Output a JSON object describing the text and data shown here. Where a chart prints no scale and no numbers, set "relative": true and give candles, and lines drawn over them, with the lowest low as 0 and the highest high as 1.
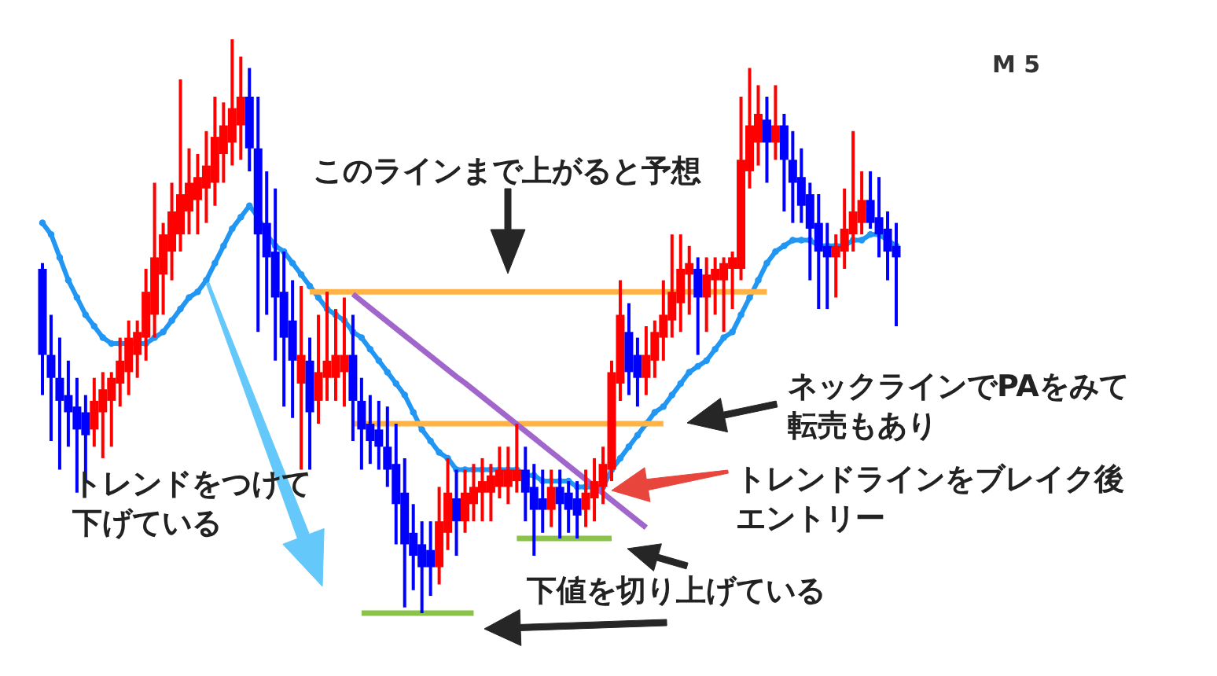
{
  "chart_data": {
    "type": "candlestick",
    "relative": true,
    "title": "M 5",
    "annotations": [
      "このラインまで上がると予想",
      "ネックラインでPAをみて転売もあり",
      "トレンドラインをブレイク後エントリー",
      "トレンドをつけて下げている",
      "下値を切り上げている"
    ],
    "categories": [
      null,
      null,
      null,
      null,
      null,
      null,
      null,
      null,
      null,
      null,
      null,
      null,
      null,
      null,
      null,
      null,
      null,
      null,
      null,
      null,
      null,
      null,
      null,
      null,
      null,
      null,
      null,
      null,
      null,
      null,
      null,
      null,
      null,
      null,
      null,
      null,
      null,
      null,
      null,
      null,
      null,
      null,
      null,
      null,
      null,
      null,
      null,
      null,
      null,
      null,
      null,
      null,
      null,
      null,
      null,
      null,
      null,
      null,
      null,
      null,
      null,
      null,
      null,
      null,
      null,
      null,
      null,
      null,
      null,
      null,
      null,
      null,
      null,
      null,
      null,
      null,
      null,
      null,
      null,
      null,
      null,
      null,
      null,
      null,
      null,
      null,
      null,
      null,
      null,
      null,
      null,
      null,
      null,
      null,
      null,
      null,
      null,
      null,
      null,
      null
    ],
    "ohlc": [
      [
        0.6,
        0.61,
        0.38,
        0.45
      ],
      [
        0.45,
        0.52,
        0.3,
        0.41
      ],
      [
        0.41,
        0.48,
        0.25,
        0.37
      ],
      [
        0.38,
        0.44,
        0.29,
        0.35
      ],
      [
        0.36,
        0.41,
        0.21,
        0.32
      ],
      [
        0.35,
        0.38,
        0.23,
        0.31
      ],
      [
        0.32,
        0.41,
        0.29,
        0.37
      ],
      [
        0.35,
        0.42,
        0.27,
        0.39
      ],
      [
        0.37,
        0.42,
        0.29,
        0.41
      ],
      [
        0.4,
        0.48,
        0.36,
        0.44
      ],
      [
        0.42,
        0.51,
        0.38,
        0.48
      ],
      [
        0.45,
        0.51,
        0.41,
        0.49
      ],
      [
        0.48,
        0.6,
        0.44,
        0.56
      ],
      [
        0.52,
        0.75,
        0.48,
        0.62
      ],
      [
        0.59,
        0.68,
        0.52,
        0.66
      ],
      [
        0.63,
        0.75,
        0.58,
        0.7
      ],
      [
        0.66,
        0.93,
        0.63,
        0.73
      ],
      [
        0.7,
        0.81,
        0.66,
        0.75
      ],
      [
        0.72,
        0.8,
        0.66,
        0.76
      ],
      [
        0.74,
        0.84,
        0.68,
        0.78
      ],
      [
        0.75,
        0.9,
        0.71,
        0.83
      ],
      [
        0.8,
        0.89,
        0.75,
        0.85
      ],
      [
        0.82,
        1.0,
        0.78,
        0.88
      ],
      [
        0.85,
        0.97,
        0.79,
        0.9
      ],
      [
        0.9,
        0.95,
        0.77,
        0.81
      ],
      [
        0.81,
        0.9,
        0.49,
        0.66
      ],
      [
        0.68,
        0.77,
        0.52,
        0.62
      ],
      [
        0.63,
        0.74,
        0.44,
        0.55
      ],
      [
        0.56,
        0.63,
        0.36,
        0.48
      ],
      [
        0.51,
        0.58,
        0.34,
        0.44
      ],
      [
        0.4,
        0.57,
        0.25,
        0.45
      ],
      [
        0.44,
        0.48,
        0.25,
        0.35
      ],
      [
        0.37,
        0.52,
        0.33,
        0.42
      ],
      [
        0.41,
        0.56,
        0.37,
        0.44
      ],
      [
        0.41,
        0.53,
        0.37,
        0.45
      ],
      [
        0.42,
        0.55,
        0.36,
        0.45
      ],
      [
        0.45,
        0.52,
        0.3,
        0.37
      ],
      [
        0.37,
        0.41,
        0.25,
        0.32
      ],
      [
        0.33,
        0.38,
        0.26,
        0.3
      ],
      [
        0.32,
        0.37,
        0.25,
        0.29
      ],
      [
        0.29,
        0.36,
        0.22,
        0.25
      ],
      [
        0.26,
        0.33,
        0.12,
        0.19
      ],
      [
        0.21,
        0.27,
        0.01,
        0.12
      ],
      [
        0.14,
        0.19,
        0.04,
        0.1
      ],
      [
        0.12,
        0.16,
        0.0,
        0.08
      ],
      [
        0.11,
        0.16,
        0.03,
        0.08
      ],
      [
        0.08,
        0.22,
        0.05,
        0.16
      ],
      [
        0.14,
        0.27,
        0.11,
        0.21
      ],
      [
        0.2,
        0.25,
        0.1,
        0.16
      ],
      [
        0.16,
        0.25,
        0.14,
        0.21
      ],
      [
        0.19,
        0.26,
        0.16,
        0.22
      ],
      [
        0.21,
        0.27,
        0.16,
        0.23
      ],
      [
        0.21,
        0.26,
        0.16,
        0.24
      ],
      [
        0.22,
        0.29,
        0.2,
        0.25
      ],
      [
        0.22,
        0.29,
        0.19,
        0.25
      ],
      [
        0.23,
        0.33,
        0.21,
        0.25
      ],
      [
        0.25,
        0.29,
        0.16,
        0.21
      ],
      [
        0.22,
        0.26,
        0.1,
        0.18
      ],
      [
        0.2,
        0.25,
        0.14,
        0.18
      ],
      [
        0.18,
        0.25,
        0.15,
        0.22
      ],
      [
        0.22,
        0.25,
        0.13,
        0.19
      ],
      [
        0.21,
        0.23,
        0.14,
        0.18
      ],
      [
        0.2,
        0.23,
        0.13,
        0.17
      ],
      [
        0.18,
        0.25,
        0.15,
        0.21
      ],
      [
        0.2,
        0.27,
        0.16,
        0.23
      ],
      [
        0.22,
        0.29,
        0.19,
        0.26
      ],
      [
        0.25,
        0.44,
        0.23,
        0.42
      ],
      [
        0.4,
        0.58,
        0.37,
        0.52
      ],
      [
        0.49,
        0.54,
        0.38,
        0.42
      ],
      [
        0.45,
        0.48,
        0.36,
        0.41
      ],
      [
        0.41,
        0.5,
        0.38,
        0.45
      ],
      [
        0.44,
        0.51,
        0.41,
        0.49
      ],
      [
        0.48,
        0.58,
        0.44,
        0.52
      ],
      [
        0.51,
        0.66,
        0.48,
        0.56
      ],
      [
        0.54,
        0.66,
        0.49,
        0.6
      ],
      [
        0.59,
        0.64,
        0.52,
        0.61
      ],
      [
        0.6,
        0.62,
        0.45,
        0.55
      ],
      [
        0.55,
        0.62,
        0.49,
        0.59
      ],
      [
        0.58,
        0.62,
        0.52,
        0.6
      ],
      [
        0.58,
        0.62,
        0.49,
        0.61
      ],
      [
        0.6,
        0.63,
        0.53,
        0.62
      ],
      [
        0.6,
        0.9,
        0.58,
        0.79
      ],
      [
        0.77,
        0.95,
        0.74,
        0.85
      ],
      [
        0.82,
        0.92,
        0.78,
        0.87
      ],
      [
        0.86,
        0.9,
        0.75,
        0.82
      ],
      [
        0.82,
        0.92,
        0.79,
        0.85
      ],
      [
        0.85,
        0.87,
        0.7,
        0.79
      ],
      [
        0.79,
        0.84,
        0.68,
        0.75
      ],
      [
        0.76,
        0.81,
        0.68,
        0.71
      ],
      [
        0.73,
        0.75,
        0.58,
        0.67
      ],
      [
        0.68,
        0.73,
        0.53,
        0.63
      ],
      [
        0.64,
        0.68,
        0.53,
        0.62
      ],
      [
        0.62,
        0.66,
        0.55,
        0.64
      ],
      [
        0.63,
        0.74,
        0.6,
        0.67
      ],
      [
        0.66,
        0.84,
        0.63,
        0.7
      ],
      [
        0.68,
        0.77,
        0.66,
        0.72
      ],
      [
        0.72,
        0.77,
        0.67,
        0.68
      ],
      [
        0.69,
        0.76,
        0.62,
        0.66
      ],
      [
        0.67,
        0.7,
        0.58,
        0.63
      ],
      [
        0.64,
        0.68,
        0.5,
        0.62
      ]
    ],
    "colors": [
      "#0000ff",
      "#0000ff",
      "#0000ff",
      "#0000ff",
      "#0000ff",
      "#0000ff",
      "#ff0000",
      "#ff0000",
      "#ff0000",
      "#ff0000",
      "#ff0000",
      "#ff0000",
      "#ff0000",
      "#ff0000",
      "#ff0000",
      "#ff0000",
      "#ff0000",
      "#ff0000",
      "#ff0000",
      "#ff0000",
      "#ff0000",
      "#ff0000",
      "#ff0000",
      "#ff0000",
      "#0000ff",
      "#0000ff",
      "#0000ff",
      "#0000ff",
      "#0000ff",
      "#0000ff",
      "#ff0000",
      "#0000ff",
      "#ff0000",
      "#ff0000",
      "#ff0000",
      "#ff0000",
      "#0000ff",
      "#0000ff",
      "#0000ff",
      "#0000ff",
      "#0000ff",
      "#0000ff",
      "#0000ff",
      "#0000ff",
      "#0000ff",
      "#0000ff",
      "#ff0000",
      "#ff0000",
      "#0000ff",
      "#ff0000",
      "#ff0000",
      "#ff0000",
      "#ff0000",
      "#ff0000",
      "#ff0000",
      "#ff0000",
      "#0000ff",
      "#0000ff",
      "#0000ff",
      "#ff0000",
      "#0000ff",
      "#0000ff",
      "#0000ff",
      "#ff0000",
      "#ff0000",
      "#ff0000",
      "#ff0000",
      "#ff0000",
      "#0000ff",
      "#0000ff",
      "#ff0000",
      "#ff0000",
      "#ff0000",
      "#ff0000",
      "#ff0000",
      "#ff0000",
      "#0000ff",
      "#ff0000",
      "#ff0000",
      "#ff0000",
      "#ff0000",
      "#ff0000",
      "#ff0000",
      "#ff0000",
      "#0000ff",
      "#ff0000",
      "#0000ff",
      "#0000ff",
      "#0000ff",
      "#0000ff",
      "#0000ff",
      "#0000ff",
      "#ff0000",
      "#ff0000",
      "#ff0000",
      "#ff0000",
      "#0000ff",
      "#0000ff",
      "#0000ff",
      "#0000ff"
    ],
    "series": [
      {
        "type": "line",
        "color": "#2196f3",
        "marker": "circle",
        "values": [
          0.68,
          0.66,
          0.62,
          0.58,
          0.55,
          0.52,
          0.5,
          0.48,
          0.47,
          0.47,
          0.47,
          0.47,
          0.47,
          0.48,
          0.49,
          0.51,
          0.53,
          0.55,
          0.56,
          0.58,
          0.61,
          0.64,
          0.67,
          0.69,
          0.71,
          0.69,
          0.66,
          0.64,
          0.63,
          0.61,
          0.59,
          0.57,
          0.55,
          0.53,
          0.52,
          0.51,
          0.49,
          0.48,
          0.46,
          0.44,
          0.42,
          0.4,
          0.38,
          0.35,
          0.32,
          0.3,
          0.28,
          0.27,
          0.25,
          0.25,
          0.25,
          0.25,
          0.25,
          0.25,
          0.25,
          0.25,
          0.24,
          0.24,
          0.23,
          0.23,
          0.23,
          0.23,
          0.22,
          0.22,
          0.22,
          0.22,
          0.25,
          0.27,
          0.29,
          0.31,
          0.33,
          0.35,
          0.36,
          0.38,
          0.4,
          0.42,
          0.43,
          0.44,
          0.46,
          0.48,
          0.49,
          0.52,
          0.55,
          0.58,
          0.61,
          0.63,
          0.64,
          0.65,
          0.65,
          0.65,
          0.64,
          0.64,
          0.64,
          0.64,
          0.65,
          0.65,
          0.66,
          0.66,
          0.65,
          0.64
        ]
      },
      {
        "type": "line",
        "color": "#ffb347",
        "values": [
          null,
          null,
          null,
          null,
          null,
          null,
          null,
          null,
          null,
          null,
          null,
          null,
          null,
          null,
          null,
          null,
          null,
          null,
          null,
          null,
          null,
          null,
          null,
          null,
          null,
          null,
          null,
          null,
          null,
          null,
          null,
          0.56,
          0.56,
          0.56,
          0.56,
          0.56,
          0.56,
          0.56,
          0.56,
          0.56,
          0.56,
          0.56,
          0.56,
          0.56,
          0.56,
          0.56,
          0.56,
          0.56,
          0.56,
          0.56,
          0.56,
          0.56,
          0.56,
          0.56,
          0.56,
          0.56,
          0.56,
          0.56,
          0.56,
          0.56,
          0.56,
          0.56,
          0.56,
          0.56,
          0.56,
          0.56,
          0.56,
          0.56,
          0.56,
          0.56,
          0.56,
          0.56,
          0.56,
          0.56,
          0.56,
          0.56,
          0.56,
          0.56,
          0.56,
          0.56,
          0.56,
          0.56,
          0.56,
          0.56,
          0.56,
          null,
          null,
          null,
          null,
          null,
          null,
          null,
          null,
          null,
          null,
          null,
          null,
          null,
          null,
          null
        ]
      },
      {
        "type": "line",
        "color": "#ffb347",
        "values": [
          null,
          null,
          null,
          null,
          null,
          null,
          null,
          null,
          null,
          null,
          null,
          null,
          null,
          null,
          null,
          null,
          null,
          null,
          null,
          null,
          null,
          null,
          null,
          null,
          null,
          null,
          null,
          null,
          null,
          null,
          null,
          null,
          null,
          null,
          null,
          null,
          0.33,
          0.33,
          0.33,
          0.33,
          0.33,
          0.33,
          0.33,
          0.33,
          0.33,
          0.33,
          0.33,
          0.33,
          0.33,
          0.33,
          0.33,
          0.33,
          0.33,
          0.33,
          0.33,
          0.33,
          0.33,
          0.33,
          0.33,
          0.33,
          0.33,
          0.33,
          0.33,
          0.33,
          0.33,
          0.33,
          0.33,
          0.33,
          0.33,
          0.33,
          0.33,
          0.33,
          0.33,
          null,
          null,
          null,
          null,
          null,
          null,
          null,
          null,
          null,
          null,
          null,
          null,
          null,
          null,
          null,
          null,
          null,
          null,
          null,
          null,
          null,
          null,
          null,
          null,
          null,
          null,
          null
        ]
      },
      {
        "type": "line",
        "color": "#a066cb",
        "values": [
          null,
          null,
          null,
          null,
          null,
          null,
          null,
          null,
          null,
          null,
          null,
          null,
          null,
          null,
          null,
          null,
          null,
          null,
          null,
          null,
          null,
          null,
          null,
          null,
          null,
          null,
          null,
          null,
          null,
          null,
          null,
          null,
          null,
          null,
          null,
          null,
          0.556,
          0.544,
          0.532,
          0.52,
          0.508,
          0.496,
          0.484,
          0.472,
          0.46,
          0.448,
          0.436,
          0.424,
          0.412,
          0.401,
          0.389,
          0.377,
          0.365,
          0.353,
          0.341,
          0.329,
          0.317,
          0.305,
          0.293,
          0.281,
          0.269,
          0.257,
          0.245,
          0.233,
          0.221,
          0.209,
          0.197,
          0.185,
          0.173,
          0.161,
          0.149,
          null,
          null,
          null,
          null,
          null,
          null,
          null,
          null,
          null,
          null,
          null,
          null,
          null,
          null,
          null,
          null,
          null,
          null,
          null,
          null,
          null,
          null,
          null,
          null,
          null,
          null,
          null,
          null,
          null
        ]
      },
      {
        "type": "line",
        "color": "#8bc34a",
        "values": [
          null,
          null,
          null,
          null,
          null,
          null,
          null,
          null,
          null,
          null,
          null,
          null,
          null,
          null,
          null,
          null,
          null,
          null,
          null,
          null,
          null,
          null,
          null,
          null,
          null,
          null,
          null,
          null,
          null,
          null,
          null,
          null,
          null,
          null,
          null,
          null,
          null,
          0,
          0,
          0,
          0,
          0,
          0,
          0,
          0,
          0,
          0,
          0,
          0,
          0,
          0,
          null,
          null,
          null,
          null,
          null,
          null,
          null,
          null,
          null,
          null,
          null,
          null,
          null,
          null,
          null,
          null,
          null,
          null,
          null,
          null,
          null,
          null,
          null,
          null,
          null,
          null,
          null,
          null,
          null,
          null,
          null,
          null,
          null,
          null,
          null,
          null,
          null,
          null,
          null,
          null,
          null,
          null,
          null,
          null,
          null,
          null,
          null,
          null,
          null
        ]
      },
      {
        "type": "line",
        "color": "#8bc34a",
        "values": [
          null,
          null,
          null,
          null,
          null,
          null,
          null,
          null,
          null,
          null,
          null,
          null,
          null,
          null,
          null,
          null,
          null,
          null,
          null,
          null,
          null,
          null,
          null,
          null,
          null,
          null,
          null,
          null,
          null,
          null,
          null,
          null,
          null,
          null,
          null,
          null,
          null,
          null,
          null,
          null,
          null,
          null,
          null,
          null,
          null,
          null,
          null,
          null,
          null,
          null,
          null,
          null,
          null,
          null,
          null,
          0.13,
          0.13,
          0.13,
          0.13,
          0.13,
          0.13,
          0.13,
          0.13,
          0.13,
          0.13,
          0.13,
          0.13,
          null,
          null,
          null,
          null,
          null,
          null,
          null,
          null,
          null,
          null,
          null,
          null,
          null,
          null,
          null,
          null,
          null,
          null,
          null,
          null,
          null,
          null,
          null,
          null,
          null,
          null,
          null,
          null,
          null,
          null,
          null,
          null,
          null
        ]
      }
    ]
  }
}
